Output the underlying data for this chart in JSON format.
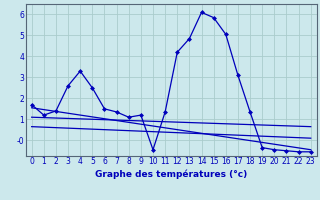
{
  "xlabel": "Graphe des températures (°c)",
  "xlim": [
    -0.5,
    23.5
  ],
  "ylim": [
    -0.75,
    6.5
  ],
  "xticks": [
    0,
    1,
    2,
    3,
    4,
    5,
    6,
    7,
    8,
    9,
    10,
    11,
    12,
    13,
    14,
    15,
    16,
    17,
    18,
    19,
    20,
    21,
    22,
    23
  ],
  "yticks": [
    0,
    1,
    2,
    3,
    4,
    5,
    6
  ],
  "ytick_labels": [
    "-0",
    "1",
    "2",
    "3",
    "4",
    "5",
    "6"
  ],
  "background_color": "#cce8ec",
  "grid_color": "#aacccc",
  "line_color": "#0000bb",
  "spine_color": "#556677",
  "line1_x": [
    0,
    1,
    2,
    3,
    4,
    5,
    6,
    7,
    8,
    9,
    10,
    11,
    12,
    13,
    14,
    15,
    16,
    17,
    18,
    19,
    20,
    21,
    22,
    23
  ],
  "line1_y": [
    1.7,
    1.2,
    1.4,
    2.6,
    3.3,
    2.5,
    1.5,
    1.35,
    1.1,
    1.2,
    -0.45,
    1.35,
    4.2,
    4.85,
    6.1,
    5.85,
    5.05,
    3.1,
    1.35,
    -0.35,
    -0.45,
    -0.5,
    -0.55,
    -0.55
  ],
  "line2_x": [
    0,
    23
  ],
  "line2_y": [
    1.55,
    -0.45
  ],
  "line3_x": [
    0,
    23
  ],
  "line3_y": [
    1.1,
    0.65
  ],
  "line4_x": [
    0,
    23
  ],
  "line4_y": [
    0.65,
    0.1
  ]
}
